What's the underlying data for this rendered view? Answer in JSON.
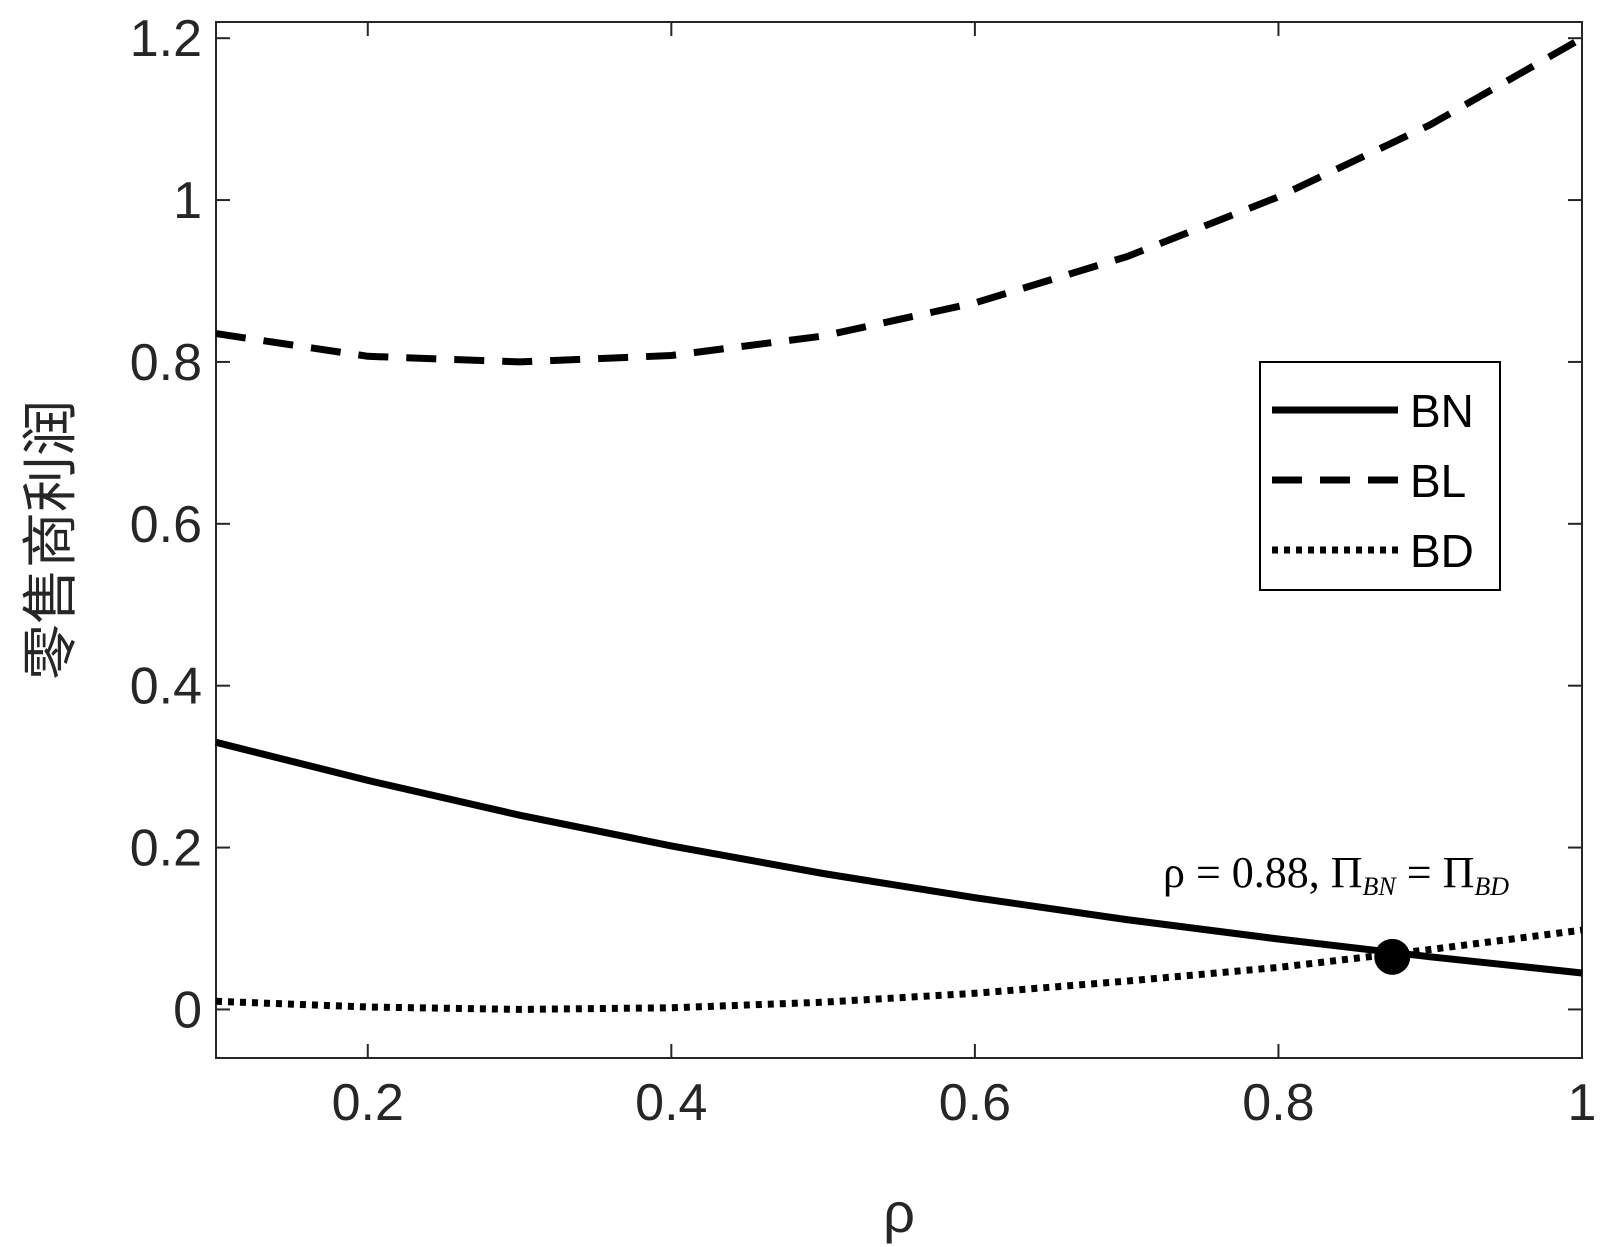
{
  "chart_data": {
    "type": "line",
    "title": "",
    "xlabel": "ρ",
    "ylabel": "零售商利润",
    "xlim": [
      0.1,
      1.0
    ],
    "ylim": [
      -0.06,
      1.22
    ],
    "xticks": [
      0.2,
      0.4,
      0.6,
      0.8,
      1.0
    ],
    "xtick_labels": [
      "0.2",
      "0.4",
      "0.6",
      "0.8",
      "1"
    ],
    "yticks": [
      0,
      0.2,
      0.4,
      0.6,
      0.8,
      1.0,
      1.2
    ],
    "ytick_labels": [
      "0",
      "0.2",
      "0.4",
      "0.6",
      "0.8",
      "1",
      "1.2"
    ],
    "grid": false,
    "legend_position": "right",
    "x": [
      0.1,
      0.2,
      0.3,
      0.4,
      0.5,
      0.6,
      0.7,
      0.8,
      0.9,
      1.0
    ],
    "series": [
      {
        "name": "BN",
        "style": "solid",
        "values": [
          0.33,
          0.283,
          0.24,
          0.202,
          0.168,
          0.138,
          0.111,
          0.087,
          0.065,
          0.045
        ]
      },
      {
        "name": "BL",
        "style": "dashed",
        "values": [
          0.835,
          0.807,
          0.8,
          0.808,
          0.832,
          0.873,
          0.93,
          1.004,
          1.093,
          1.2
        ]
      },
      {
        "name": "BD",
        "style": "dotted",
        "values": [
          0.01,
          0.003,
          0.0,
          0.002,
          0.009,
          0.02,
          0.035,
          0.052,
          0.074,
          0.098
        ]
      }
    ],
    "annotation": {
      "x": 0.875,
      "y": 0.065,
      "text_parts": [
        "ρ = 0.88, Π",
        "BN",
        " = Π",
        "BD"
      ]
    },
    "colors": {
      "line": "#000000",
      "axis": "#262626"
    }
  }
}
